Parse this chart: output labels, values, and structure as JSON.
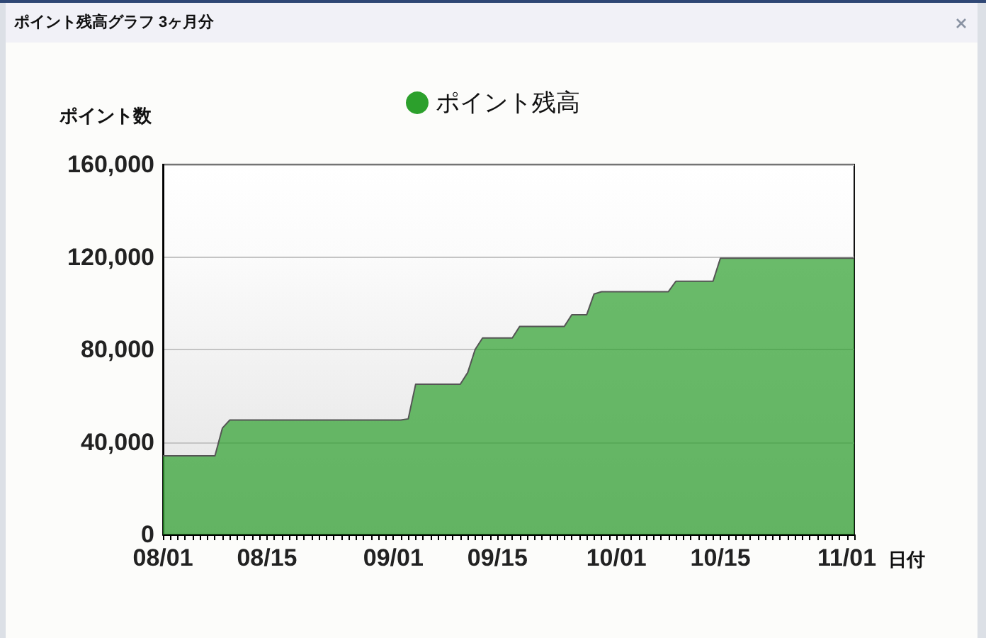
{
  "chart_data": {
    "type": "area",
    "title": "ポイント残高グラフ 3ヶ月分",
    "ylabel": "ポイント数",
    "xlabel": "日付",
    "legend": "top",
    "grid": "y",
    "x": [
      "--08-01",
      "--08-08",
      "--08-09",
      "--08-10",
      "--09-02",
      "--09-03",
      "--09-04",
      "--09-10",
      "--09-11",
      "--09-12",
      "--09-13",
      "--09-17",
      "--09-18",
      "--09-24",
      "--09-25",
      "--09-27",
      "--09-28",
      "--09-29",
      "--10-08",
      "--10-09",
      "--10-14",
      "--10-15",
      "--11-02"
    ],
    "series": [
      {
        "name": "ポイント残高",
        "color": "#2ca02c",
        "values": [
          34000,
          34000,
          46000,
          49500,
          49500,
          50000,
          65000,
          65000,
          70000,
          80000,
          85000,
          85000,
          90000,
          90000,
          95000,
          95000,
          104000,
          105000,
          105000,
          109500,
          109500,
          119500,
          119500
        ]
      }
    ],
    "ylim": [
      0,
      160000
    ],
    "yticks": [
      {
        "value": 0,
        "label": "0"
      },
      {
        "value": 40000,
        "label": "40,000"
      },
      {
        "value": 80000,
        "label": "80,000"
      },
      {
        "value": 120000,
        "label": "120,000"
      },
      {
        "value": 160000,
        "label": "160,000"
      }
    ],
    "xlim": [
      "--08-01",
      "--11-02"
    ],
    "xticks": [
      {
        "value": "--08-01",
        "label": "08/01"
      },
      {
        "value": "--08-02",
        "label": null
      },
      {
        "value": "--08-03",
        "label": null
      },
      {
        "value": "--08-04",
        "label": null
      },
      {
        "value": "--08-05",
        "label": null
      },
      {
        "value": "--08-06",
        "label": null
      },
      {
        "value": "--08-07",
        "label": null
      },
      {
        "value": "--08-08",
        "label": null
      },
      {
        "value": "--08-09",
        "label": null
      },
      {
        "value": "--08-10",
        "label": null
      },
      {
        "value": "--08-11",
        "label": null
      },
      {
        "value": "--08-12",
        "label": null
      },
      {
        "value": "--08-13",
        "label": null
      },
      {
        "value": "--08-14",
        "label": null
      },
      {
        "value": "--08-15",
        "label": "08/15"
      },
      {
        "value": "--08-16",
        "label": null
      },
      {
        "value": "--08-17",
        "label": null
      },
      {
        "value": "--08-18",
        "label": null
      },
      {
        "value": "--08-19",
        "label": null
      },
      {
        "value": "--08-20",
        "label": null
      },
      {
        "value": "--08-21",
        "label": null
      },
      {
        "value": "--08-22",
        "label": null
      },
      {
        "value": "--08-23",
        "label": null
      },
      {
        "value": "--08-24",
        "label": null
      },
      {
        "value": "--08-25",
        "label": null
      },
      {
        "value": "--08-26",
        "label": null
      },
      {
        "value": "--08-27",
        "label": null
      },
      {
        "value": "--08-28",
        "label": null
      },
      {
        "value": "--08-29",
        "label": null
      },
      {
        "value": "--08-30",
        "label": null
      },
      {
        "value": "--08-31",
        "label": null
      },
      {
        "value": "--09-01",
        "label": "09/01"
      },
      {
        "value": "--09-02",
        "label": null
      },
      {
        "value": "--09-03",
        "label": null
      },
      {
        "value": "--09-04",
        "label": null
      },
      {
        "value": "--09-05",
        "label": null
      },
      {
        "value": "--09-06",
        "label": null
      },
      {
        "value": "--09-07",
        "label": null
      },
      {
        "value": "--09-08",
        "label": null
      },
      {
        "value": "--09-09",
        "label": null
      },
      {
        "value": "--09-10",
        "label": null
      },
      {
        "value": "--09-11",
        "label": null
      },
      {
        "value": "--09-12",
        "label": null
      },
      {
        "value": "--09-13",
        "label": null
      },
      {
        "value": "--09-14",
        "label": null
      },
      {
        "value": "--09-15",
        "label": "09/15"
      },
      {
        "value": "--09-16",
        "label": null
      },
      {
        "value": "--09-17",
        "label": null
      },
      {
        "value": "--09-18",
        "label": null
      },
      {
        "value": "--09-19",
        "label": null
      },
      {
        "value": "--09-20",
        "label": null
      },
      {
        "value": "--09-21",
        "label": null
      },
      {
        "value": "--09-22",
        "label": null
      },
      {
        "value": "--09-23",
        "label": null
      },
      {
        "value": "--09-24",
        "label": null
      },
      {
        "value": "--09-25",
        "label": null
      },
      {
        "value": "--09-26",
        "label": null
      },
      {
        "value": "--09-27",
        "label": null
      },
      {
        "value": "--09-28",
        "label": null
      },
      {
        "value": "--09-29",
        "label": null
      },
      {
        "value": "--09-30",
        "label": null
      },
      {
        "value": "--10-01",
        "label": "10/01"
      },
      {
        "value": "--10-02",
        "label": null
      },
      {
        "value": "--10-03",
        "label": null
      },
      {
        "value": "--10-04",
        "label": null
      },
      {
        "value": "--10-05",
        "label": null
      },
      {
        "value": "--10-06",
        "label": null
      },
      {
        "value": "--10-07",
        "label": null
      },
      {
        "value": "--10-08",
        "label": null
      },
      {
        "value": "--10-09",
        "label": null
      },
      {
        "value": "--10-10",
        "label": null
      },
      {
        "value": "--10-11",
        "label": null
      },
      {
        "value": "--10-12",
        "label": null
      },
      {
        "value": "--10-13",
        "label": null
      },
      {
        "value": "--10-14",
        "label": null
      },
      {
        "value": "--10-15",
        "label": "10/15"
      },
      {
        "value": "--10-16",
        "label": null
      },
      {
        "value": "--10-17",
        "label": null
      },
      {
        "value": "--10-18",
        "label": null
      },
      {
        "value": "--10-19",
        "label": null
      },
      {
        "value": "--10-20",
        "label": null
      },
      {
        "value": "--10-21",
        "label": null
      },
      {
        "value": "--10-22",
        "label": null
      },
      {
        "value": "--10-23",
        "label": null
      },
      {
        "value": "--10-24",
        "label": null
      },
      {
        "value": "--10-25",
        "label": null
      },
      {
        "value": "--10-26",
        "label": null
      },
      {
        "value": "--10-27",
        "label": null
      },
      {
        "value": "--10-28",
        "label": null
      },
      {
        "value": "--10-29",
        "label": null
      },
      {
        "value": "--10-30",
        "label": null
      },
      {
        "value": "--10-31",
        "label": null
      },
      {
        "value": "--11-01",
        "label": "11/01"
      },
      {
        "value": "--11-02",
        "label": null
      }
    ]
  }
}
